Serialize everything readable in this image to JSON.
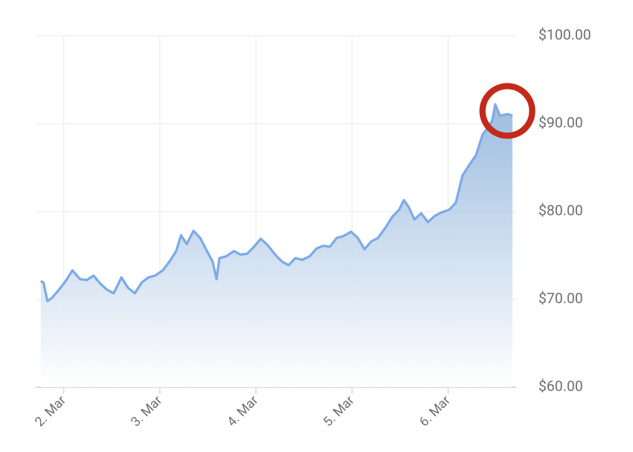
{
  "chart_data": {
    "type": "area",
    "x": [
      1.76,
      1.79,
      1.83,
      1.88,
      1.95,
      2.02,
      2.09,
      2.17,
      2.24,
      2.31,
      2.38,
      2.45,
      2.52,
      2.6,
      2.67,
      2.74,
      2.81,
      2.88,
      2.95,
      3.03,
      3.1,
      3.17,
      3.22,
      3.28,
      3.35,
      3.42,
      3.49,
      3.55,
      3.59,
      3.62,
      3.69,
      3.77,
      3.84,
      3.91,
      3.98,
      4.05,
      4.12,
      4.2,
      4.27,
      4.34,
      4.41,
      4.48,
      4.56,
      4.63,
      4.7,
      4.77,
      4.84,
      4.91,
      4.99,
      5.06,
      5.13,
      5.2,
      5.27,
      5.35,
      5.42,
      5.49,
      5.54,
      5.59,
      5.65,
      5.72,
      5.79,
      5.86,
      5.93,
      6.01,
      6.08,
      6.15,
      6.22,
      6.29,
      6.36,
      6.42,
      6.46,
      6.49,
      6.54,
      6.62,
      6.67
    ],
    "values": [
      72.1,
      71.9,
      69.8,
      70.2,
      71.1,
      72.1,
      73.3,
      72.3,
      72.2,
      72.7,
      71.8,
      71.1,
      70.7,
      72.5,
      71.3,
      70.7,
      71.9,
      72.5,
      72.7,
      73.3,
      74.3,
      75.5,
      77.3,
      76.3,
      77.8,
      77.0,
      75.5,
      74.3,
      72.3,
      74.7,
      74.9,
      75.5,
      75.1,
      75.2,
      76.0,
      76.9,
      76.2,
      75.1,
      74.3,
      73.9,
      74.7,
      74.5,
      74.9,
      75.8,
      76.1,
      76.0,
      77.0,
      77.2,
      77.7,
      77.0,
      75.7,
      76.6,
      77.0,
      78.2,
      79.4,
      80.2,
      81.3,
      80.5,
      79.1,
      79.8,
      78.8,
      79.5,
      79.9,
      80.2,
      81.0,
      84.1,
      85.3,
      86.4,
      88.8,
      89.6,
      90.4,
      92.2,
      90.9,
      91.1,
      90.9
    ],
    "color": "#7eaae6",
    "xlim": [
      1.71,
      6.71
    ],
    "xticks": [
      {
        "value": 2,
        "label": "2. Mar"
      },
      {
        "value": 3,
        "label": "3. Mar"
      },
      {
        "value": 4,
        "label": "4. Mar"
      },
      {
        "value": 5,
        "label": "5. Mar"
      },
      {
        "value": 6,
        "label": "6. Mar"
      }
    ],
    "ylim": [
      60,
      100
    ],
    "yticks": [
      {
        "value": 60,
        "label": "$60.00"
      },
      {
        "value": 70,
        "label": "$70.00"
      },
      {
        "value": 80,
        "label": "$80.00"
      },
      {
        "value": 90,
        "label": "$90.00"
      },
      {
        "value": 100,
        "label": "$100.00"
      }
    ],
    "grid": true
  }
}
